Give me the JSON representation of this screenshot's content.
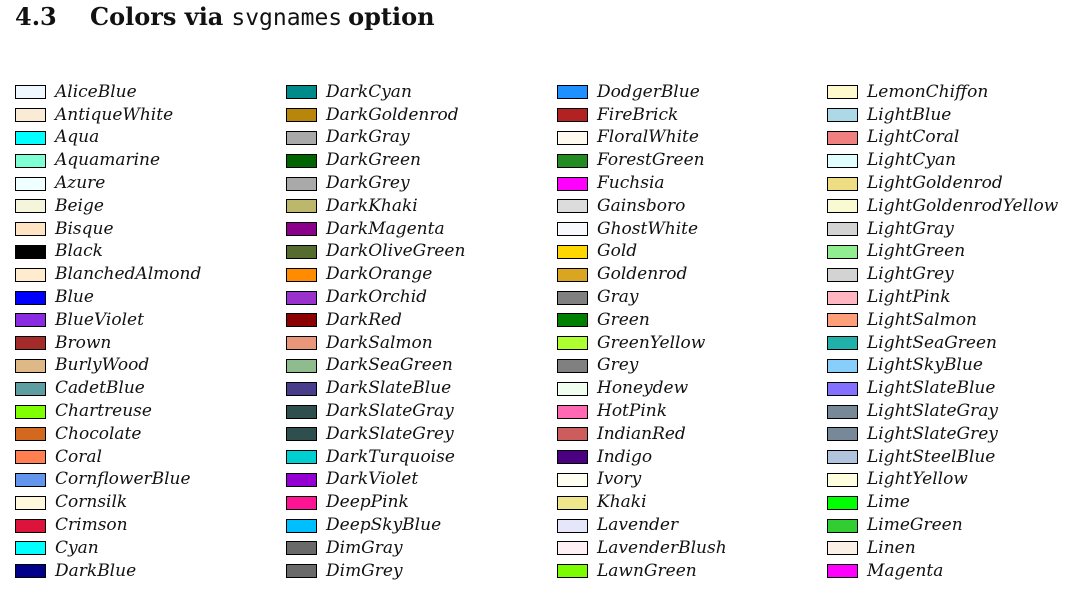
{
  "section": {
    "number": "4.3",
    "title_pre": "Colors via",
    "title_code": "svgnames",
    "title_post": "option"
  },
  "columns": [
    [
      {
        "name": "AliceBlue",
        "color": "#F0F8FF"
      },
      {
        "name": "AntiqueWhite",
        "color": "#FAEBD7"
      },
      {
        "name": "Aqua",
        "color": "#00FFFF"
      },
      {
        "name": "Aquamarine",
        "color": "#7FFFD4"
      },
      {
        "name": "Azure",
        "color": "#F0FFFF"
      },
      {
        "name": "Beige",
        "color": "#F5F5DC"
      },
      {
        "name": "Bisque",
        "color": "#FFE4C4"
      },
      {
        "name": "Black",
        "color": "#000000"
      },
      {
        "name": "BlanchedAlmond",
        "color": "#FFEBCD"
      },
      {
        "name": "Blue",
        "color": "#0000FF"
      },
      {
        "name": "BlueViolet",
        "color": "#8A2BE2"
      },
      {
        "name": "Brown",
        "color": "#A52A2A"
      },
      {
        "name": "BurlyWood",
        "color": "#DEB887"
      },
      {
        "name": "CadetBlue",
        "color": "#5F9EA0"
      },
      {
        "name": "Chartreuse",
        "color": "#7FFF00"
      },
      {
        "name": "Chocolate",
        "color": "#D2691E"
      },
      {
        "name": "Coral",
        "color": "#FF7F50"
      },
      {
        "name": "CornflowerBlue",
        "color": "#6495ED"
      },
      {
        "name": "Cornsilk",
        "color": "#FFF8DC"
      },
      {
        "name": "Crimson",
        "color": "#DC143C"
      },
      {
        "name": "Cyan",
        "color": "#00FFFF"
      },
      {
        "name": "DarkBlue",
        "color": "#00008B"
      }
    ],
    [
      {
        "name": "DarkCyan",
        "color": "#008B8B"
      },
      {
        "name": "DarkGoldenrod",
        "color": "#B8860B"
      },
      {
        "name": "DarkGray",
        "color": "#A9A9A9"
      },
      {
        "name": "DarkGreen",
        "color": "#006400"
      },
      {
        "name": "DarkGrey",
        "color": "#A9A9A9"
      },
      {
        "name": "DarkKhaki",
        "color": "#BDB76B"
      },
      {
        "name": "DarkMagenta",
        "color": "#8B008B"
      },
      {
        "name": "DarkOliveGreen",
        "color": "#556B2F"
      },
      {
        "name": "DarkOrange",
        "color": "#FF8C00"
      },
      {
        "name": "DarkOrchid",
        "color": "#9932CC"
      },
      {
        "name": "DarkRed",
        "color": "#8B0000"
      },
      {
        "name": "DarkSalmon",
        "color": "#E9967A"
      },
      {
        "name": "DarkSeaGreen",
        "color": "#8FBC8F"
      },
      {
        "name": "DarkSlateBlue",
        "color": "#483D8B"
      },
      {
        "name": "DarkSlateGray",
        "color": "#2F4F4F"
      },
      {
        "name": "DarkSlateGrey",
        "color": "#2F4F4F"
      },
      {
        "name": "DarkTurquoise",
        "color": "#00CED1"
      },
      {
        "name": "DarkViolet",
        "color": "#9400D3"
      },
      {
        "name": "DeepPink",
        "color": "#FF1493"
      },
      {
        "name": "DeepSkyBlue",
        "color": "#00BFFF"
      },
      {
        "name": "DimGray",
        "color": "#696969"
      },
      {
        "name": "DimGrey",
        "color": "#696969"
      }
    ],
    [
      {
        "name": "DodgerBlue",
        "color": "#1E90FF"
      },
      {
        "name": "FireBrick",
        "color": "#B22222"
      },
      {
        "name": "FloralWhite",
        "color": "#FFFAF0"
      },
      {
        "name": "ForestGreen",
        "color": "#228B22"
      },
      {
        "name": "Fuchsia",
        "color": "#FF00FF"
      },
      {
        "name": "Gainsboro",
        "color": "#DCDCDC"
      },
      {
        "name": "GhostWhite",
        "color": "#F8F8FF"
      },
      {
        "name": "Gold",
        "color": "#FFD700"
      },
      {
        "name": "Goldenrod",
        "color": "#DAA520"
      },
      {
        "name": "Gray",
        "color": "#808080"
      },
      {
        "name": "Green",
        "color": "#008000"
      },
      {
        "name": "GreenYellow",
        "color": "#ADFF2F"
      },
      {
        "name": "Grey",
        "color": "#808080"
      },
      {
        "name": "Honeydew",
        "color": "#F0FFF0"
      },
      {
        "name": "HotPink",
        "color": "#FF69B4"
      },
      {
        "name": "IndianRed",
        "color": "#CD5C5C"
      },
      {
        "name": "Indigo",
        "color": "#4B0082"
      },
      {
        "name": "Ivory",
        "color": "#FFFFF0"
      },
      {
        "name": "Khaki",
        "color": "#F0E68C"
      },
      {
        "name": "Lavender",
        "color": "#E6E6FA"
      },
      {
        "name": "LavenderBlush",
        "color": "#FFF0F5"
      },
      {
        "name": "LawnGreen",
        "color": "#7CFC00"
      }
    ],
    [
      {
        "name": "LemonChiffon",
        "color": "#FFFACD"
      },
      {
        "name": "LightBlue",
        "color": "#ADD8E6"
      },
      {
        "name": "LightCoral",
        "color": "#F08080"
      },
      {
        "name": "LightCyan",
        "color": "#E0FFFF"
      },
      {
        "name": "LightGoldenrod",
        "color": "#EEDD82"
      },
      {
        "name": "LightGoldenrodYellow",
        "color": "#FAFAD2"
      },
      {
        "name": "LightGray",
        "color": "#D3D3D3"
      },
      {
        "name": "LightGreen",
        "color": "#90EE90"
      },
      {
        "name": "LightGrey",
        "color": "#D3D3D3"
      },
      {
        "name": "LightPink",
        "color": "#FFB6C1"
      },
      {
        "name": "LightSalmon",
        "color": "#FFA07A"
      },
      {
        "name": "LightSeaGreen",
        "color": "#20B2AA"
      },
      {
        "name": "LightSkyBlue",
        "color": "#87CEFA"
      },
      {
        "name": "LightSlateBlue",
        "color": "#8470FF"
      },
      {
        "name": "LightSlateGray",
        "color": "#778899"
      },
      {
        "name": "LightSlateGrey",
        "color": "#778899"
      },
      {
        "name": "LightSteelBlue",
        "color": "#B0C4DE"
      },
      {
        "name": "LightYellow",
        "color": "#FFFFE0"
      },
      {
        "name": "Lime",
        "color": "#00FF00"
      },
      {
        "name": "LimeGreen",
        "color": "#32CD32"
      },
      {
        "name": "Linen",
        "color": "#FAF0E6"
      },
      {
        "name": "Magenta",
        "color": "#FF00FF"
      }
    ]
  ]
}
